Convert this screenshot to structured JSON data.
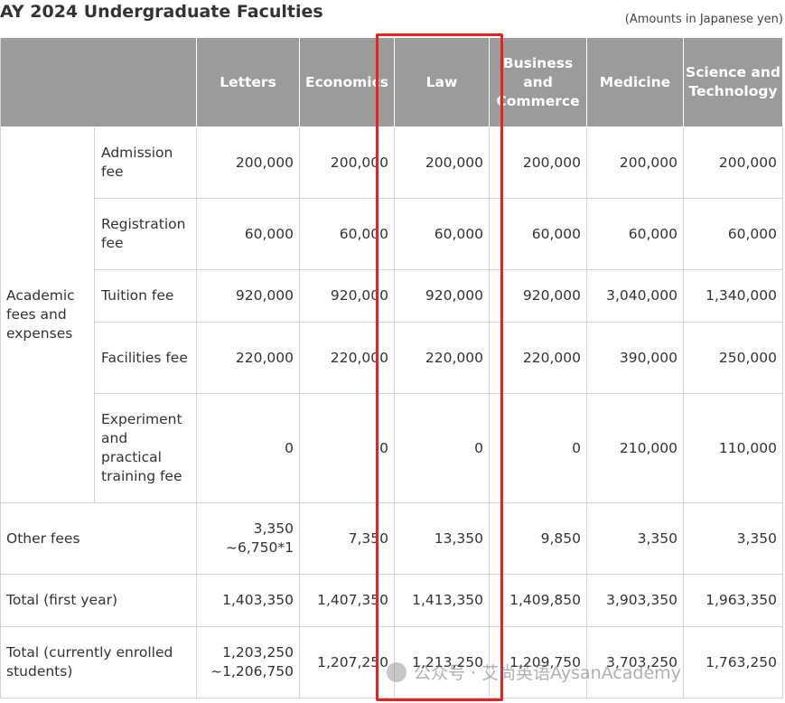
{
  "title": "AY 2024 Undergraduate Faculties",
  "note": "(Amounts in Japanese yen)",
  "table": {
    "columns": [
      "Letters",
      "Economics",
      "Law",
      "Business and Commerce",
      "Medicine",
      "Science and Technology"
    ],
    "groups": [
      {
        "label": "Academic fees and expenses",
        "rows": [
          {
            "label": "Admission fee",
            "values": [
              "200,000",
              "200,000",
              "200,000",
              "200,000",
              "200,000",
              "200,000"
            ]
          },
          {
            "label": "Registration fee",
            "values": [
              "60,000",
              "60,000",
              "60,000",
              "60,000",
              "60,000",
              "60,000"
            ]
          },
          {
            "label": "Tuition fee",
            "values": [
              "920,000",
              "920,000",
              "920,000",
              "920,000",
              "3,040,000",
              "1,340,000"
            ]
          },
          {
            "label": "Facilities fee",
            "values": [
              "220,000",
              "220,000",
              "220,000",
              "220,000",
              "390,000",
              "250,000"
            ]
          },
          {
            "label": "Experiment and practical training fee",
            "values": [
              "0",
              "0",
              "0",
              "0",
              "210,000",
              "110,000"
            ]
          }
        ]
      }
    ],
    "rows": [
      {
        "label": "Other fees",
        "values": [
          "3,350\n~6,750*1",
          "7,350",
          "13,350",
          "9,850",
          "3,350",
          "3,350"
        ]
      },
      {
        "label": "Total (first year)",
        "values": [
          "1,403,350",
          "1,407,350",
          "1,413,350",
          "1,409,850",
          "3,903,350",
          "1,963,350"
        ]
      },
      {
        "label": "Total (currently enrolled students)",
        "values": [
          "1,203,250\n~1,206,750",
          "1,207,250",
          "1,213,250",
          "1,209,750",
          "3,703,250",
          "1,763,250"
        ]
      }
    ]
  },
  "watermark": "公众号 · 艾尚英语AysanAcademy"
}
